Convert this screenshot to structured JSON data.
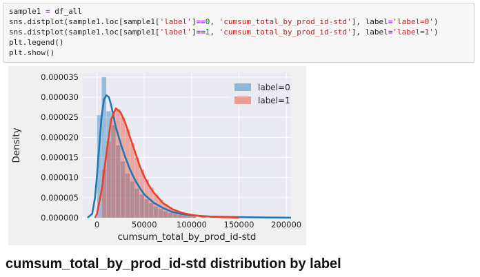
{
  "code": {
    "line1": {
      "t1": "sample1 ",
      "op": "=",
      "t2": " df_all"
    },
    "line2": {
      "t1": "sns.distplot(sample1.loc[sample1[",
      "s1": "'label'",
      "t2": "]",
      "op": "==",
      "n": "0",
      "t3": ", ",
      "s2": "'cumsum_total_by_prod_id-std'",
      "t4": "], label",
      "op2": "=",
      "s3": "'label=0'",
      "t5": ")"
    },
    "line3": {
      "t1": "sns.distplot(sample1.loc[sample1[",
      "s1": "'label'",
      "t2": "]",
      "op": "==",
      "n": "1",
      "t3": ", ",
      "s2": "'cumsum_total_by_prod_id-std'",
      "t4": "], label",
      "op2": "=",
      "s3": "'label=1'",
      "t5": ")"
    },
    "line4": "plt.legend()",
    "line5": "plt.show()"
  },
  "chart_data": {
    "type": "histogram+kde",
    "xlabel": "cumsum_total_by_prod_id-std",
    "ylabel": "Density",
    "xlim": [
      -15000,
      205000
    ],
    "ylim": [
      0,
      3.6e-05
    ],
    "xticks": [
      0,
      50000,
      100000,
      150000,
      200000
    ],
    "xtick_labels": [
      "0",
      "50000",
      "100000",
      "150000",
      "200000"
    ],
    "yticks": [
      0,
      5e-06,
      1e-05,
      1.5e-05,
      2e-05,
      2.5e-05,
      3e-05,
      3.5e-05
    ],
    "ytick_labels": [
      "0.000000",
      "0.000005",
      "0.000010",
      "0.000015",
      "0.000020",
      "0.000025",
      "0.000030",
      "0.000035"
    ],
    "grid": true,
    "legend_position": "top-right",
    "series": [
      {
        "name": "label=0",
        "color": "#1f77b4",
        "hist_bin_width": 5000,
        "hist": [
          [
            0,
            2.55e-05
          ],
          [
            5000,
            3.5e-05
          ],
          [
            10000,
            2.65e-05
          ],
          [
            15000,
            2.3e-05
          ],
          [
            20000,
            1.8e-05
          ],
          [
            25000,
            1.4e-05
          ],
          [
            30000,
            1.1e-05
          ],
          [
            35000,
            9e-06
          ],
          [
            40000,
            7.2e-06
          ],
          [
            45000,
            5.8e-06
          ],
          [
            50000,
            4.6e-06
          ],
          [
            55000,
            3.6e-06
          ],
          [
            60000,
            2.8e-06
          ],
          [
            65000,
            2.2e-06
          ],
          [
            70000,
            1.6e-06
          ],
          [
            75000,
            1.2e-06
          ],
          [
            80000,
            9e-07
          ],
          [
            85000,
            7e-07
          ],
          [
            90000,
            5e-07
          ],
          [
            95000,
            4e-07
          ],
          [
            100000,
            3e-07
          ],
          [
            110000,
            2e-07
          ],
          [
            130000,
            1e-07
          ],
          [
            150000,
            5e-08
          ]
        ],
        "kde": [
          [
            -10000,
            0.0
          ],
          [
            -5000,
            1e-06
          ],
          [
            -2000,
            5e-06
          ],
          [
            0,
            1.05e-05
          ],
          [
            2500,
            1.8e-05
          ],
          [
            5000,
            2.55e-05
          ],
          [
            7500,
            2.95e-05
          ],
          [
            10000,
            3.05e-05
          ],
          [
            12500,
            3e-05
          ],
          [
            15000,
            2.8e-05
          ],
          [
            20000,
            2.25e-05
          ],
          [
            25000,
            1.85e-05
          ],
          [
            30000,
            1.5e-05
          ],
          [
            35000,
            1.2e-05
          ],
          [
            40000,
            9.5e-06
          ],
          [
            45000,
            7.5e-06
          ],
          [
            50000,
            5.8e-06
          ],
          [
            60000,
            3.7e-06
          ],
          [
            70000,
            2.4e-06
          ],
          [
            80000,
            1.4e-06
          ],
          [
            90000,
            9e-07
          ],
          [
            100000,
            6e-07
          ],
          [
            120000,
            3e-07
          ],
          [
            140000,
            2e-07
          ],
          [
            160000,
            1.2e-07
          ],
          [
            185000,
            5e-08
          ],
          [
            205000,
            2e-08
          ]
        ]
      },
      {
        "name": "label=1",
        "color": "#e8412c",
        "hist_bin_width": 5000,
        "hist": [
          [
            5000,
            1.2e-05
          ],
          [
            10000,
            1.9e-05
          ],
          [
            15000,
            2.6e-05
          ],
          [
            20000,
            2.7e-05
          ],
          [
            25000,
            2.5e-05
          ],
          [
            30000,
            2.2e-05
          ],
          [
            35000,
            1.85e-05
          ],
          [
            40000,
            1.5e-05
          ],
          [
            45000,
            1.2e-05
          ],
          [
            50000,
            9.5e-06
          ],
          [
            55000,
            7.5e-06
          ],
          [
            60000,
            5.8e-06
          ],
          [
            65000,
            4.5e-06
          ],
          [
            70000,
            3.4e-06
          ],
          [
            75000,
            2.6e-06
          ],
          [
            80000,
            1.9e-06
          ],
          [
            85000,
            1.4e-06
          ],
          [
            90000,
            1e-06
          ],
          [
            95000,
            7e-07
          ],
          [
            100000,
            5e-07
          ],
          [
            110000,
            3e-07
          ],
          [
            130000,
            1e-07
          ]
        ],
        "kde": [
          [
            -2000,
            0.0
          ],
          [
            0,
            1e-06
          ],
          [
            5000,
            7e-06
          ],
          [
            10000,
            1.6e-05
          ],
          [
            15000,
            2.45e-05
          ],
          [
            20000,
            2.72e-05
          ],
          [
            25000,
            2.62e-05
          ],
          [
            30000,
            2.35e-05
          ],
          [
            35000,
            2e-05
          ],
          [
            40000,
            1.65e-05
          ],
          [
            45000,
            1.3e-05
          ],
          [
            50000,
            1.02e-05
          ],
          [
            55000,
            8e-06
          ],
          [
            60000,
            6.2e-06
          ],
          [
            70000,
            3.6e-06
          ],
          [
            80000,
            2.1e-06
          ],
          [
            90000,
            1.2e-06
          ],
          [
            100000,
            7e-07
          ],
          [
            110000,
            4e-07
          ],
          [
            125000,
            2e-07
          ],
          [
            140000,
            1e-07
          ],
          [
            150000,
            3e-08
          ]
        ]
      }
    ]
  },
  "caption": "cumsum_total_by_prod_id-std distribution by label"
}
